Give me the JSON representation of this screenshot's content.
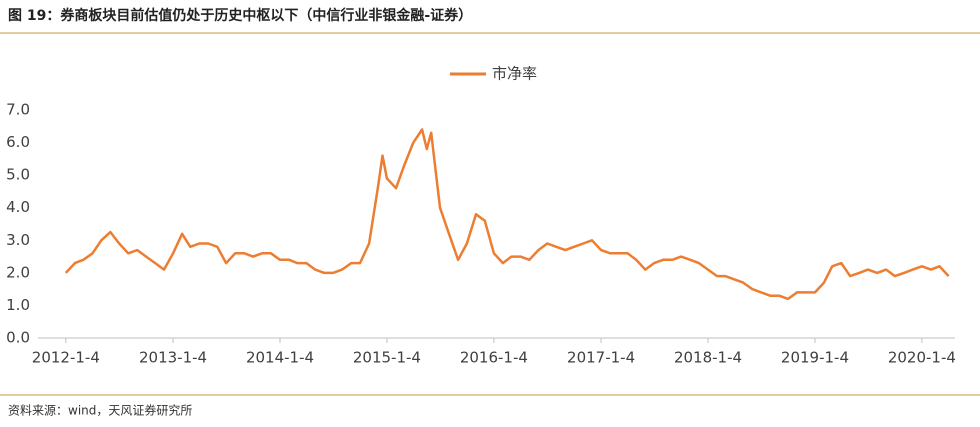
{
  "chart_data": {
    "type": "line",
    "title": "图 19：券商板块目前估值仍处于历史中枢以下（中信行业非银金融-证券）",
    "source": "资料来源：wind，天风证券研究所",
    "x": [
      "2012-1-4",
      "2012-2-4",
      "2012-3-4",
      "2012-4-4",
      "2012-5-4",
      "2012-6-4",
      "2012-7-4",
      "2012-8-4",
      "2012-9-4",
      "2012-10-4",
      "2012-11-4",
      "2012-12-4",
      "2013-1-4",
      "2013-2-4",
      "2013-3-4",
      "2013-4-4",
      "2013-5-4",
      "2013-6-4",
      "2013-7-4",
      "2013-8-4",
      "2013-9-4",
      "2013-10-4",
      "2013-11-4",
      "2013-12-4",
      "2014-1-4",
      "2014-2-4",
      "2014-3-4",
      "2014-4-4",
      "2014-5-4",
      "2014-6-4",
      "2014-7-4",
      "2014-8-4",
      "2014-9-4",
      "2014-10-4",
      "2014-11-4",
      "2014-12-4",
      "2014-12-20",
      "2015-1-4",
      "2015-2-4",
      "2015-3-4",
      "2015-4-4",
      "2015-5-4",
      "2015-5-20",
      "2015-6-4",
      "2015-7-4",
      "2015-8-4",
      "2015-9-4",
      "2015-10-4",
      "2015-11-4",
      "2015-12-4",
      "2016-1-4",
      "2016-2-4",
      "2016-3-4",
      "2016-4-4",
      "2016-5-4",
      "2016-6-4",
      "2016-7-4",
      "2016-8-4",
      "2016-9-4",
      "2016-10-4",
      "2016-11-4",
      "2016-12-4",
      "2017-1-4",
      "2017-2-4",
      "2017-3-4",
      "2017-4-4",
      "2017-5-4",
      "2017-6-4",
      "2017-7-4",
      "2017-8-4",
      "2017-9-4",
      "2017-10-4",
      "2017-11-4",
      "2017-12-4",
      "2018-1-4",
      "2018-2-4",
      "2018-3-4",
      "2018-4-4",
      "2018-5-4",
      "2018-6-4",
      "2018-7-4",
      "2018-8-4",
      "2018-9-4",
      "2018-10-4",
      "2018-11-4",
      "2018-12-4",
      "2019-1-4",
      "2019-2-4",
      "2019-3-4",
      "2019-4-4",
      "2019-5-4",
      "2019-6-4",
      "2019-7-4",
      "2019-8-4",
      "2019-9-4",
      "2019-10-4",
      "2019-11-4",
      "2019-12-4",
      "2020-1-4",
      "2020-2-4",
      "2020-3-4",
      "2020-4-4"
    ],
    "series": [
      {
        "name": "市净率",
        "color": "#ED7D31",
        "values": [
          2.0,
          2.3,
          2.4,
          2.6,
          3.0,
          3.25,
          2.9,
          2.6,
          2.7,
          2.5,
          2.3,
          2.1,
          2.6,
          3.2,
          2.8,
          2.9,
          2.9,
          2.8,
          2.3,
          2.6,
          2.6,
          2.5,
          2.6,
          2.6,
          2.4,
          2.4,
          2.3,
          2.3,
          2.1,
          2.0,
          2.0,
          2.1,
          2.3,
          2.3,
          2.9,
          4.6,
          5.6,
          4.9,
          4.6,
          5.3,
          6.0,
          6.4,
          5.8,
          6.3,
          4.0,
          3.2,
          2.4,
          2.9,
          3.8,
          3.6,
          2.6,
          2.3,
          2.5,
          2.5,
          2.4,
          2.7,
          2.9,
          2.8,
          2.7,
          2.8,
          2.9,
          3.0,
          2.7,
          2.6,
          2.6,
          2.6,
          2.4,
          2.1,
          2.3,
          2.4,
          2.4,
          2.5,
          2.4,
          2.3,
          2.1,
          1.9,
          1.9,
          1.8,
          1.7,
          1.5,
          1.4,
          1.3,
          1.3,
          1.2,
          1.4,
          1.4,
          1.4,
          1.7,
          2.2,
          2.3,
          1.9,
          2.0,
          2.1,
          2.0,
          2.1,
          1.9,
          2.0,
          2.1,
          2.2,
          2.1,
          2.2,
          1.9
        ]
      }
    ],
    "xlim": [
      "2011-10-1",
      "2020-4-26"
    ],
    "xticks": [
      "2012-1-4",
      "2013-1-4",
      "2014-1-4",
      "2015-1-4",
      "2016-1-4",
      "2017-1-4",
      "2018-1-4",
      "2019-1-4",
      "2020-1-4"
    ],
    "ylim": [
      0,
      7
    ],
    "yticks": [
      {
        "value": 0,
        "label": "0.0"
      },
      {
        "value": 1,
        "label": "1.0"
      },
      {
        "value": 2,
        "label": "2.0"
      },
      {
        "value": 3,
        "label": "3.0"
      },
      {
        "value": 4,
        "label": "4.0"
      },
      {
        "value": 5,
        "label": "5.0"
      },
      {
        "value": 6,
        "label": "6.0"
      },
      {
        "value": 7,
        "label": "7.0"
      }
    ],
    "grid": false,
    "legend": "top"
  }
}
